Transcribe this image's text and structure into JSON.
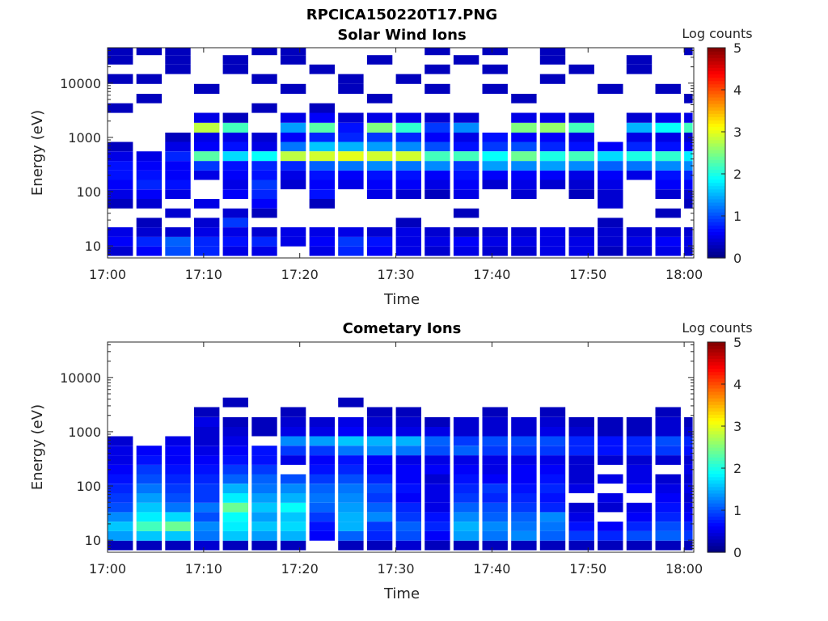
{
  "figure_title": "RPCICA150220T17.PNG",
  "colorbar": {
    "label": "Log counts",
    "min": 0,
    "max": 5,
    "ticks": [
      "0",
      "1",
      "2",
      "3",
      "4",
      "5"
    ],
    "colormap": "jet"
  },
  "chart_data": [
    {
      "type": "heatmap",
      "title": "Solar Wind Ions",
      "xlabel": "Time",
      "ylabel": "Energy (eV)",
      "xticks": [
        "17:00",
        "17:10",
        "17:20",
        "17:30",
        "17:40",
        "17:50",
        "18:00"
      ],
      "yticks": [
        "10",
        "100",
        "1000",
        "10000"
      ],
      "ylim": [
        6,
        45000
      ],
      "yscale": "log",
      "xlim": [
        "17:00",
        "18:01"
      ],
      "time_columns": [
        "17:00",
        "17:03",
        "17:06",
        "17:09",
        "17:12",
        "17:15",
        "17:18",
        "17:21",
        "17:24",
        "17:27",
        "17:30",
        "17:33",
        "17:36",
        "17:39",
        "17:42",
        "17:45",
        "17:48",
        "17:51",
        "17:54",
        "17:57",
        "18:00"
      ],
      "energy_bins": [
        8,
        12,
        18,
        27,
        40,
        60,
        90,
        135,
        200,
        300,
        450,
        680,
        1000,
        1500,
        2300,
        3500,
        5200,
        7800,
        12000,
        18000,
        27000,
        40000
      ],
      "log_counts": [
        [
          0.4,
          0.6,
          1.0,
          0.8,
          0.5,
          0.5,
          0.0,
          0.5,
          0.8,
          0.6,
          0.5,
          0.4,
          0.5,
          0.4,
          0.4,
          0.5,
          0.5,
          0.3,
          0.4,
          0.5,
          0.4
        ],
        [
          0.6,
          0.8,
          1.1,
          0.8,
          0.7,
          0.8,
          0.5,
          0.6,
          0.9,
          0.7,
          0.5,
          0.5,
          0.6,
          0.5,
          0.5,
          0.5,
          0.5,
          0.4,
          0.5,
          0.6,
          0.5
        ],
        [
          0.5,
          0.4,
          0.4,
          0.5,
          0.5,
          0.4,
          0.5,
          0.5,
          0.5,
          0.4,
          0.5,
          0.4,
          0.3,
          0.4,
          0.4,
          0.5,
          0.4,
          0.4,
          0.4,
          0.4,
          0.4
        ],
        [
          0.0,
          0.3,
          0.0,
          0.4,
          0.9,
          0.0,
          0.0,
          0.0,
          0.0,
          0.0,
          0.3,
          0.0,
          0.0,
          0.0,
          0.0,
          0.0,
          0.0,
          0.3,
          0.0,
          0.0,
          0.0
        ],
        [
          0.0,
          0.0,
          0.4,
          0.0,
          0.4,
          0.3,
          0.0,
          0.0,
          0.0,
          0.0,
          0.0,
          0.0,
          0.3,
          0.0,
          0.0,
          0.0,
          0.0,
          0.0,
          0.0,
          0.3,
          0.0
        ],
        [
          0.3,
          0.4,
          0.0,
          0.5,
          0.0,
          0.6,
          0.0,
          0.3,
          0.0,
          0.0,
          0.0,
          0.0,
          0.0,
          0.0,
          0.0,
          0.0,
          0.0,
          0.4,
          0.0,
          0.0,
          0.3
        ],
        [
          0.5,
          0.6,
          0.5,
          0.0,
          0.6,
          0.8,
          0.0,
          0.7,
          0.0,
          0.5,
          0.4,
          0.3,
          0.5,
          0.0,
          0.4,
          0.0,
          0.3,
          0.4,
          0.0,
          0.4,
          0.4
        ],
        [
          0.6,
          0.8,
          0.7,
          0.0,
          0.5,
          0.9,
          0.4,
          0.6,
          0.5,
          0.6,
          0.6,
          0.5,
          0.6,
          0.4,
          0.5,
          0.4,
          0.4,
          0.5,
          0.0,
          0.6,
          0.6
        ],
        [
          0.7,
          0.7,
          0.6,
          0.5,
          0.6,
          0.7,
          0.5,
          0.7,
          0.6,
          0.7,
          0.7,
          0.6,
          0.7,
          0.6,
          0.6,
          0.6,
          0.5,
          0.6,
          0.5,
          0.7,
          0.8
        ],
        [
          0.7,
          0.6,
          0.6,
          0.9,
          0.7,
          0.8,
          0.8,
          1.1,
          1.2,
          1.3,
          1.2,
          1.3,
          0.9,
          1.4,
          1.3,
          1.4,
          1.3,
          1.1,
          1.2,
          1.3,
          1.3
        ],
        [
          0.5,
          0.5,
          0.8,
          2.3,
          1.7,
          1.9,
          2.8,
          2.9,
          3.0,
          2.9,
          2.9,
          2.2,
          2.2,
          1.9,
          2.4,
          2.0,
          2.2,
          1.7,
          2.0,
          2.1,
          1.8
        ],
        [
          0.3,
          0.0,
          0.5,
          0.6,
          0.7,
          0.5,
          1.2,
          1.6,
          1.5,
          1.4,
          1.3,
          1.0,
          0.7,
          0.9,
          1.0,
          0.8,
          0.7,
          0.6,
          0.8,
          0.7,
          0.6
        ],
        [
          0.0,
          0.0,
          0.3,
          0.5,
          0.5,
          0.4,
          0.6,
          0.8,
          0.8,
          0.9,
          0.8,
          0.6,
          0.5,
          0.7,
          0.6,
          0.6,
          0.5,
          0.0,
          0.5,
          0.5,
          0.4
        ],
        [
          0.0,
          0.0,
          0.0,
          2.8,
          2.2,
          0.0,
          1.4,
          2.3,
          0.7,
          2.5,
          2.1,
          0.9,
          1.3,
          0.0,
          2.5,
          2.6,
          2.2,
          0.0,
          1.5,
          1.9,
          2.2
        ],
        [
          0.0,
          0.0,
          0.0,
          0.5,
          0.3,
          0.0,
          0.5,
          0.6,
          0.4,
          0.5,
          0.5,
          0.4,
          0.4,
          0.0,
          0.5,
          0.5,
          0.4,
          0.0,
          0.4,
          0.5,
          0.5
        ],
        [
          0.3,
          0.0,
          0.0,
          0.0,
          0.0,
          0.3,
          0.0,
          0.3,
          0.0,
          0.0,
          0.0,
          0.0,
          0.0,
          0.0,
          0.0,
          0.0,
          0.0,
          0.0,
          0.0,
          0.0,
          0.0
        ],
        [
          0.0,
          0.3,
          0.0,
          0.0,
          0.0,
          0.0,
          0.0,
          0.0,
          0.0,
          0.3,
          0.0,
          0.0,
          0.0,
          0.0,
          0.3,
          0.0,
          0.0,
          0.0,
          0.0,
          0.0,
          0.3
        ],
        [
          0.0,
          0.0,
          0.0,
          0.3,
          0.0,
          0.0,
          0.3,
          0.0,
          0.3,
          0.0,
          0.0,
          0.3,
          0.0,
          0.3,
          0.0,
          0.0,
          0.0,
          0.3,
          0.0,
          0.3,
          0.0
        ],
        [
          0.3,
          0.3,
          0.0,
          0.0,
          0.0,
          0.3,
          0.0,
          0.0,
          0.3,
          0.0,
          0.3,
          0.0,
          0.0,
          0.0,
          0.0,
          0.3,
          0.0,
          0.0,
          0.0,
          0.0,
          0.0
        ],
        [
          0.0,
          0.0,
          0.3,
          0.0,
          0.3,
          0.0,
          0.0,
          0.3,
          0.0,
          0.0,
          0.0,
          0.3,
          0.0,
          0.3,
          0.0,
          0.0,
          0.3,
          0.0,
          0.3,
          0.0,
          0.0
        ],
        [
          0.3,
          0.0,
          0.3,
          0.0,
          0.3,
          0.0,
          0.3,
          0.0,
          0.0,
          0.3,
          0.0,
          0.0,
          0.3,
          0.0,
          0.0,
          0.3,
          0.0,
          0.0,
          0.3,
          0.0,
          0.0
        ],
        [
          0.3,
          0.3,
          0.3,
          0.0,
          0.0,
          0.3,
          0.3,
          0.0,
          0.0,
          0.0,
          0.0,
          0.3,
          0.0,
          0.3,
          0.0,
          0.3,
          0.0,
          0.0,
          0.0,
          0.0,
          0.3
        ]
      ]
    },
    {
      "type": "heatmap",
      "title": "Cometary Ions",
      "xlabel": "Time",
      "ylabel": "Energy (eV)",
      "xticks": [
        "17:00",
        "17:10",
        "17:20",
        "17:30",
        "17:40",
        "17:50",
        "18:00"
      ],
      "yticks": [
        "10",
        "100",
        "1000",
        "10000"
      ],
      "ylim": [
        6,
        45000
      ],
      "yscale": "log",
      "xlim": [
        "17:00",
        "18:01"
      ],
      "time_columns": [
        "17:00",
        "17:03",
        "17:06",
        "17:09",
        "17:12",
        "17:15",
        "17:18",
        "17:21",
        "17:24",
        "17:27",
        "17:30",
        "17:33",
        "17:36",
        "17:39",
        "17:42",
        "17:45",
        "17:48",
        "17:51",
        "17:54",
        "17:57",
        "18:00"
      ],
      "energy_bins": [
        8,
        12,
        18,
        27,
        40,
        60,
        90,
        135,
        200,
        300,
        450,
        680,
        1000,
        1500,
        2300,
        3500,
        5200,
        7800,
        12000,
        18000,
        27000,
        40000
      ],
      "log_counts": [
        [
          0.3,
          0.3,
          0.3,
          0.4,
          0.3,
          0.3,
          0.3,
          0.0,
          0.3,
          0.3,
          0.4,
          0.3,
          0.3,
          0.3,
          0.3,
          0.3,
          0.3,
          0.3,
          0.3,
          0.3,
          0.3
        ],
        [
          1.4,
          1.6,
          1.6,
          1.2,
          1.6,
          1.4,
          1.5,
          0.6,
          1.1,
          0.8,
          1.0,
          0.6,
          1.4,
          1.2,
          1.3,
          1.1,
          0.9,
          0.8,
          1.0,
          1.1,
          0.9
        ],
        [
          1.6,
          2.2,
          2.4,
          1.3,
          1.8,
          1.6,
          1.7,
          0.7,
          1.5,
          0.9,
          1.1,
          0.8,
          1.5,
          1.3,
          1.2,
          1.2,
          0.7,
          0.6,
          0.8,
          1.0,
          0.8
        ],
        [
          1.3,
          1.8,
          1.7,
          1.0,
          1.9,
          1.4,
          1.6,
          0.9,
          1.5,
          1.3,
          0.9,
          0.7,
          1.3,
          1.1,
          1.1,
          1.3,
          0.5,
          0.0,
          0.6,
          0.8,
          0.6
        ],
        [
          1.0,
          1.6,
          1.2,
          1.2,
          2.4,
          1.6,
          1.9,
          1.1,
          1.4,
          1.1,
          0.8,
          0.5,
          1.1,
          1.0,
          0.9,
          0.8,
          0.4,
          0.4,
          0.5,
          0.7,
          0.5
        ],
        [
          0.9,
          1.4,
          1.0,
          0.9,
          1.8,
          1.4,
          1.5,
          1.2,
          1.3,
          0.9,
          0.6,
          0.5,
          0.9,
          0.8,
          0.8,
          0.7,
          0.0,
          0.5,
          0.0,
          0.6,
          0.4
        ],
        [
          0.8,
          1.2,
          0.9,
          0.9,
          1.5,
          1.2,
          1.3,
          1.1,
          1.2,
          1.0,
          0.7,
          0.5,
          0.8,
          0.9,
          0.7,
          0.8,
          0.5,
          0.0,
          0.6,
          0.5,
          0.5
        ],
        [
          0.7,
          1.0,
          0.8,
          0.8,
          1.1,
          1.1,
          1.0,
          0.9,
          1.0,
          0.8,
          0.6,
          0.4,
          0.7,
          0.6,
          0.6,
          0.7,
          0.4,
          0.5,
          0.5,
          0.4,
          0.4
        ],
        [
          0.6,
          0.9,
          0.7,
          0.7,
          0.9,
          0.9,
          0.0,
          0.7,
          0.8,
          0.6,
          0.6,
          0.6,
          0.6,
          0.5,
          0.6,
          0.6,
          0.4,
          0.0,
          0.5,
          0.0,
          0.5
        ],
        [
          0.5,
          0.7,
          0.6,
          0.6,
          0.7,
          0.7,
          0.5,
          0.6,
          0.7,
          0.6,
          0.5,
          0.5,
          0.5,
          0.5,
          0.5,
          0.5,
          0.4,
          0.4,
          0.4,
          0.4,
          0.4
        ],
        [
          0.5,
          0.6,
          0.6,
          0.5,
          0.6,
          0.7,
          0.9,
          0.9,
          1.2,
          1.3,
          1.2,
          1.0,
          1.1,
          0.9,
          0.9,
          0.9,
          0.8,
          0.7,
          0.8,
          0.9,
          0.7
        ],
        [
          0.4,
          0.0,
          0.5,
          0.4,
          0.5,
          0.0,
          1.3,
          1.4,
          1.6,
          1.5,
          1.5,
          1.1,
          0.9,
          1.0,
          1.0,
          1.0,
          0.8,
          0.7,
          0.8,
          1.0,
          0.8
        ],
        [
          0.0,
          0.0,
          0.0,
          0.4,
          0.4,
          0.3,
          0.5,
          0.5,
          0.6,
          0.5,
          0.5,
          0.5,
          0.4,
          0.4,
          0.4,
          0.5,
          0.4,
          0.3,
          0.3,
          0.4,
          0.4
        ],
        [
          0.0,
          0.0,
          0.0,
          0.5,
          0.3,
          0.3,
          0.4,
          0.4,
          0.5,
          0.4,
          0.4,
          0.3,
          0.4,
          0.4,
          0.4,
          0.4,
          0.3,
          0.3,
          0.3,
          0.4,
          0.3
        ],
        [
          0.0,
          0.0,
          0.0,
          0.3,
          0.0,
          0.0,
          0.3,
          0.0,
          0.0,
          0.3,
          0.3,
          0.0,
          0.0,
          0.3,
          0.0,
          0.3,
          0.0,
          0.0,
          0.0,
          0.3,
          0.0
        ],
        [
          0.0,
          0.0,
          0.0,
          0.0,
          0.3,
          0.0,
          0.0,
          0.0,
          0.3,
          0.0,
          0.0,
          0.0,
          0.0,
          0.0,
          0.0,
          0.0,
          0.0,
          0.0,
          0.0,
          0.0,
          0.0
        ],
        [
          0.0,
          0.0,
          0.0,
          0.0,
          0.0,
          0.0,
          0.0,
          0.0,
          0.0,
          0.0,
          0.0,
          0.0,
          0.0,
          0.0,
          0.0,
          0.0,
          0.0,
          0.0,
          0.0,
          0.0,
          0.0
        ],
        [
          0.0,
          0.0,
          0.0,
          0.0,
          0.0,
          0.0,
          0.0,
          0.0,
          0.0,
          0.0,
          0.0,
          0.0,
          0.0,
          0.0,
          0.0,
          0.0,
          0.0,
          0.0,
          0.0,
          0.0,
          0.0
        ],
        [
          0.0,
          0.0,
          0.0,
          0.0,
          0.0,
          0.0,
          0.0,
          0.0,
          0.0,
          0.0,
          0.0,
          0.0,
          0.0,
          0.0,
          0.0,
          0.0,
          0.0,
          0.0,
          0.0,
          0.0,
          0.0
        ],
        [
          0.0,
          0.0,
          0.0,
          0.0,
          0.0,
          0.0,
          0.0,
          0.0,
          0.0,
          0.0,
          0.0,
          0.0,
          0.0,
          0.0,
          0.0,
          0.0,
          0.0,
          0.0,
          0.0,
          0.0,
          0.0
        ],
        [
          0.0,
          0.0,
          0.0,
          0.0,
          0.0,
          0.0,
          0.0,
          0.0,
          0.0,
          0.0,
          0.0,
          0.0,
          0.0,
          0.0,
          0.0,
          0.0,
          0.0,
          0.0,
          0.0,
          0.0,
          0.0
        ],
        [
          0.0,
          0.0,
          0.0,
          0.0,
          0.0,
          0.0,
          0.0,
          0.0,
          0.0,
          0.0,
          0.0,
          0.0,
          0.0,
          0.0,
          0.0,
          0.0,
          0.0,
          0.0,
          0.0,
          0.0,
          0.0
        ]
      ]
    }
  ]
}
